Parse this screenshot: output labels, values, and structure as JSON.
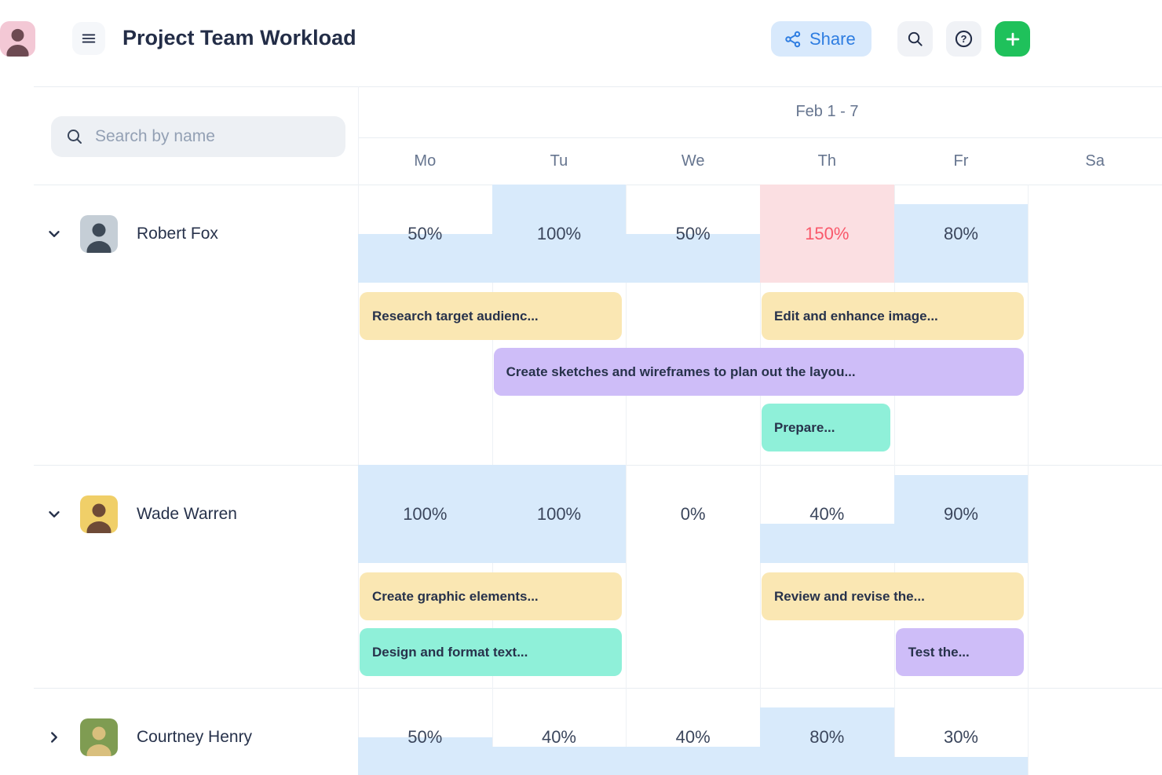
{
  "header": {
    "title": "Project Team Workload",
    "share_label": "Share",
    "icons": {
      "menu": "hamburger-menu",
      "share": "share-nodes",
      "search": "magnifier",
      "help": "question-circle",
      "add": "plus",
      "avatar": "user-photo"
    }
  },
  "search": {
    "placeholder": "Search by name"
  },
  "timeline": {
    "week_label": "Feb 1 - 7",
    "days": [
      "Mo",
      "Tu",
      "We",
      "Th",
      "Fr",
      "Sa"
    ]
  },
  "members": [
    {
      "name": "Robert Fox",
      "expanded": true,
      "avatar": {
        "bg": "#c5ced6",
        "fg": "#3e4a57"
      },
      "workload": [
        {
          "day": "Mo",
          "label": "50%",
          "pct": 50,
          "over": false
        },
        {
          "day": "Tu",
          "label": "100%",
          "pct": 100,
          "over": false
        },
        {
          "day": "We",
          "label": "50%",
          "pct": 50,
          "over": false
        },
        {
          "day": "Th",
          "label": "150%",
          "pct": 150,
          "over": true
        },
        {
          "day": "Fr",
          "label": "80%",
          "pct": 80,
          "over": false
        },
        {
          "day": "Sa",
          "label": null,
          "pct": null,
          "over": false
        }
      ],
      "tasks": [
        {
          "label": "Research target audienc...",
          "color": "yellow",
          "start": 0,
          "span": 2,
          "lane": 0
        },
        {
          "label": "Edit and enhance image...",
          "color": "yellow",
          "start": 3,
          "span": 2,
          "lane": 0
        },
        {
          "label": "Create sketches and wireframes to plan out the layou...",
          "color": "purple",
          "start": 1,
          "span": 4,
          "lane": 1
        },
        {
          "label": "Prepare...",
          "color": "teal",
          "start": 3,
          "span": 1,
          "lane": 2
        }
      ]
    },
    {
      "name": "Wade Warren",
      "expanded": true,
      "avatar": {
        "bg": "#f0cf68",
        "fg": "#6e4a36"
      },
      "workload": [
        {
          "day": "Mo",
          "label": "100%",
          "pct": 100,
          "over": false
        },
        {
          "day": "Tu",
          "label": "100%",
          "pct": 100,
          "over": false
        },
        {
          "day": "We",
          "label": "0%",
          "pct": 0,
          "over": false
        },
        {
          "day": "Th",
          "label": "40%",
          "pct": 40,
          "over": false
        },
        {
          "day": "Fr",
          "label": "90%",
          "pct": 90,
          "over": false
        },
        {
          "day": "Sa",
          "label": null,
          "pct": null,
          "over": false
        }
      ],
      "tasks": [
        {
          "label": "Create graphic elements...",
          "color": "yellow",
          "start": 0,
          "span": 2,
          "lane": 0
        },
        {
          "label": "Review and revise the...",
          "color": "yellow",
          "start": 3,
          "span": 2,
          "lane": 0
        },
        {
          "label": "Design and format text...",
          "color": "teal",
          "start": 0,
          "span": 2,
          "lane": 1
        },
        {
          "label": "Test the...",
          "color": "purple",
          "start": 4,
          "span": 1,
          "lane": 1
        }
      ]
    },
    {
      "name": "Courtney Henry",
      "expanded": false,
      "avatar": {
        "bg": "#7f9c52",
        "fg": "#d9bf7d"
      },
      "workload": [
        {
          "day": "Mo",
          "label": "50%",
          "pct": 50,
          "over": false
        },
        {
          "day": "Tu",
          "label": "40%",
          "pct": 40,
          "over": false
        },
        {
          "day": "We",
          "label": "40%",
          "pct": 40,
          "over": false
        },
        {
          "day": "Th",
          "label": "80%",
          "pct": 80,
          "over": false
        },
        {
          "day": "Fr",
          "label": "30%",
          "pct": 30,
          "over": false
        },
        {
          "day": "Sa",
          "label": null,
          "pct": null,
          "over": false
        }
      ],
      "tasks": []
    }
  ],
  "colors": {
    "workload_fill": "#d8eafb",
    "overload_fill": "#fbdfe2",
    "overload_text": "#f9586a",
    "workload_text": "#3b465c",
    "task_yellow": "#fae7b3",
    "task_purple": "#cebdf8",
    "task_teal": "#8ff0d9",
    "share_bg": "#d8e9fc",
    "share_accent": "#2e7de1",
    "add_button": "#1fc15b",
    "header_avatar_bg": "#f3c8d5",
    "header_avatar_fg": "#6d4a52"
  }
}
